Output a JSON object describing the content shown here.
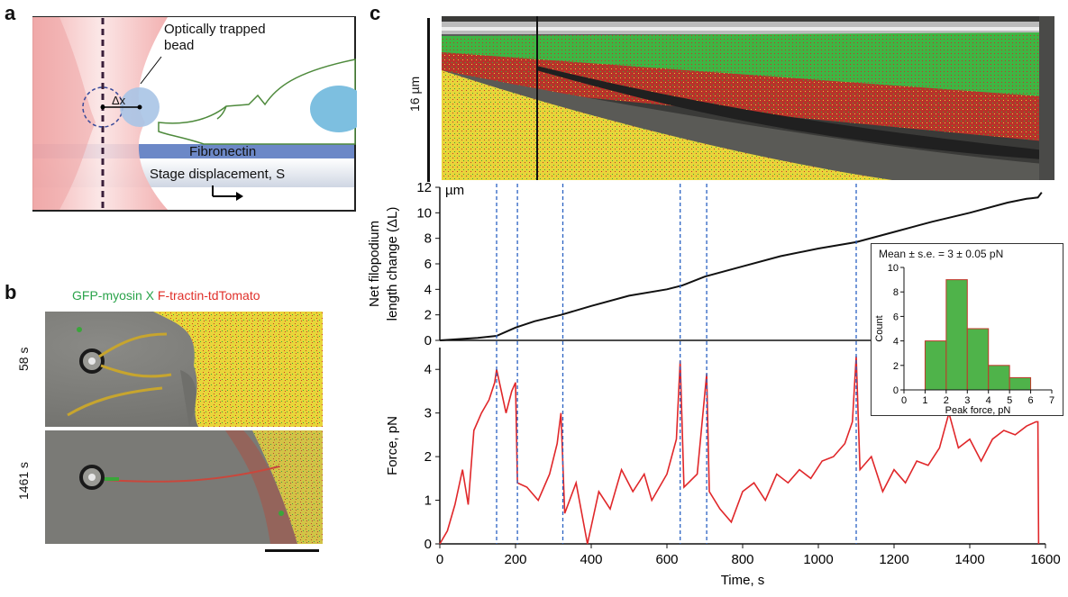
{
  "panels": {
    "a": {
      "label": "a"
    },
    "b": {
      "label": "b"
    },
    "c": {
      "label": "c"
    }
  },
  "schematic": {
    "bead_label": "Optically trapped\nbead",
    "dx_label": "Δx",
    "fibronectin_label": "Fibronectin",
    "stage_label": "Stage displacement, S",
    "colors": {
      "trap": "#f4b9b9",
      "bead": "#a9c4e6",
      "fibronectin": "#5d7fc1",
      "stage": "#d6dce8",
      "cell_outline": "#4e8a3c",
      "nucleus": "#7dbfe0"
    }
  },
  "micrographs": {
    "title_green": "GFP-myosin X",
    "title_red": "F-tractin-tdTomato",
    "frames": [
      {
        "time_label": "58 s"
      },
      {
        "time_label": "1461 s"
      }
    ]
  },
  "kymograph": {
    "scale_label": "16 µm"
  },
  "chart_data": [
    {
      "type": "line",
      "ylabel": "Net filopodium\nlength change (ΔL)",
      "yunit": "µm",
      "ylim": [
        0,
        12
      ],
      "yticks": [
        0,
        2,
        4,
        6,
        8,
        10,
        12
      ],
      "xlim": [
        0,
        1600
      ],
      "grid": false,
      "series": [
        {
          "x": [
            0,
            50,
            100,
            150,
            200,
            250,
            320,
            400,
            500,
            600,
            640,
            700,
            800,
            900,
            1000,
            1100,
            1200,
            1300,
            1400,
            1500,
            1550,
            1580,
            1590
          ],
          "y": [
            0,
            0.1,
            0.2,
            0.35,
            1.0,
            1.5,
            2.0,
            2.7,
            3.5,
            4.0,
            4.3,
            5.0,
            5.8,
            6.6,
            7.2,
            7.7,
            8.5,
            9.3,
            10.0,
            10.8,
            11.1,
            11.2,
            11.6
          ]
        }
      ]
    },
    {
      "type": "line",
      "xlabel": "Time, s",
      "ylabel": "Force, pN",
      "ylim": [
        0,
        4.5
      ],
      "yticks": [
        0,
        1,
        2,
        3,
        4
      ],
      "xlim": [
        0,
        1600
      ],
      "xticks": [
        0,
        200,
        400,
        600,
        800,
        1000,
        1200,
        1400,
        1600
      ],
      "grid": false,
      "series": [
        {
          "x": [
            0,
            20,
            40,
            60,
            75,
            90,
            110,
            130,
            145,
            150,
            160,
            175,
            190,
            200,
            205,
            230,
            260,
            290,
            310,
            320,
            330,
            360,
            390,
            420,
            450,
            480,
            510,
            540,
            560,
            600,
            625,
            635,
            645,
            680,
            705,
            712,
            740,
            770,
            800,
            830,
            860,
            890,
            920,
            950,
            980,
            1010,
            1040,
            1070,
            1090,
            1100,
            1110,
            1140,
            1170,
            1200,
            1230,
            1260,
            1290,
            1320,
            1345,
            1370,
            1400,
            1430,
            1460,
            1490,
            1520,
            1550,
            1575,
            1580,
            1582
          ],
          "y": [
            0,
            0.3,
            0.9,
            1.7,
            0.9,
            2.6,
            3.0,
            3.3,
            3.7,
            4.0,
            3.6,
            3.0,
            3.5,
            3.7,
            1.4,
            1.3,
            1.0,
            1.6,
            2.3,
            3.0,
            0.7,
            1.4,
            0,
            1.2,
            0.8,
            1.7,
            1.2,
            1.6,
            1.0,
            1.6,
            2.4,
            4.2,
            1.3,
            1.6,
            3.9,
            1.2,
            0.8,
            0.5,
            1.2,
            1.4,
            1.0,
            1.6,
            1.4,
            1.7,
            1.5,
            1.9,
            2.0,
            2.3,
            2.8,
            4.3,
            1.7,
            2.0,
            1.2,
            1.7,
            1.4,
            1.9,
            1.8,
            2.2,
            3.0,
            2.2,
            2.4,
            1.9,
            2.4,
            2.6,
            2.5,
            2.7,
            2.8,
            2.8,
            0
          ]
        }
      ],
      "markers_x": [
        150,
        205,
        325,
        635,
        705,
        1100
      ]
    },
    {
      "type": "bar",
      "title": "Mean ± s.e. = 3 ± 0.05 pN",
      "xlabel": "Peak force, pN",
      "ylabel": "Count",
      "bins": [
        [
          1,
          2
        ],
        [
          2,
          3
        ],
        [
          3,
          4
        ],
        [
          4,
          5
        ],
        [
          5,
          6
        ]
      ],
      "values": [
        4,
        9,
        5,
        2,
        1
      ],
      "xlim": [
        0,
        7
      ],
      "xticks": [
        0,
        1,
        2,
        3,
        4,
        5,
        6,
        7
      ],
      "ylim": [
        0,
        10
      ],
      "yticks": [
        0,
        2,
        4,
        6,
        8,
        10
      ],
      "colors": {
        "bar_fill": "#4fb34a",
        "bar_edge": "#c0392b"
      }
    }
  ]
}
